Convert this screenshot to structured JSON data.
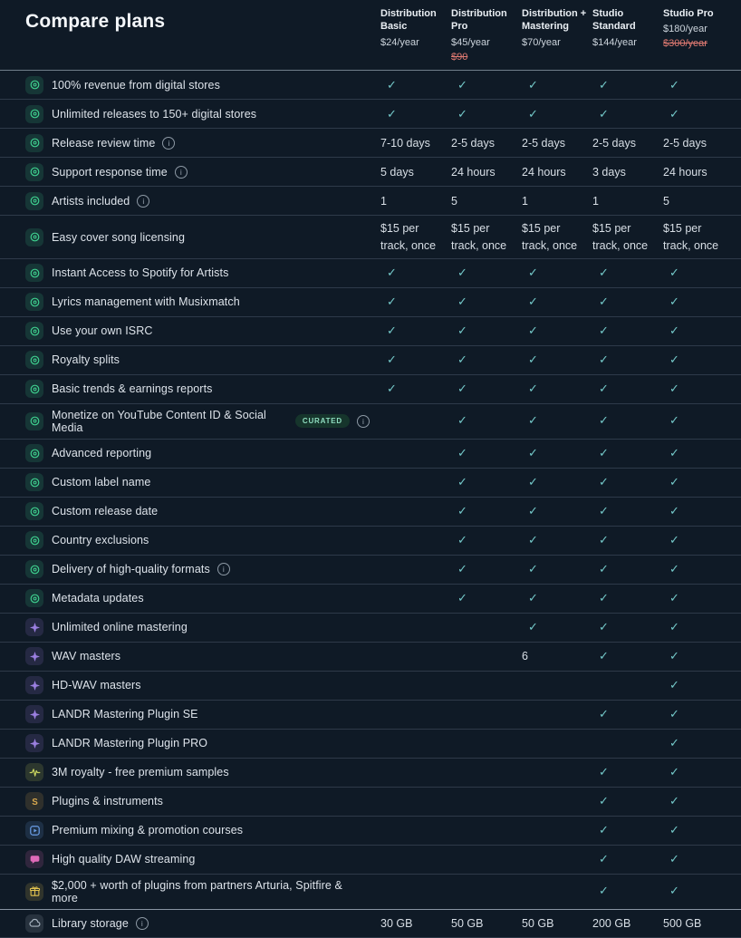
{
  "page": {
    "title": "Compare plans",
    "background": "#0f1a26",
    "check_symbol": "✓",
    "check_color": "#74c9c9",
    "strikethrough_color": "#e07a72"
  },
  "plans": [
    {
      "name": "Distribution Basic",
      "price": "$24/year",
      "old_price": ""
    },
    {
      "name": "Distribution Pro",
      "price": "$45/year",
      "old_price": "$90"
    },
    {
      "name": "Distribution + Mastering",
      "price": "$70/year",
      "old_price": ""
    },
    {
      "name": "Studio Standard",
      "price": "$144/year",
      "old_price": ""
    },
    {
      "name": "Studio Pro",
      "price": "$180/year",
      "old_price": "$300/year"
    }
  ],
  "icons": {
    "distribution": {
      "color": "#3ecf8e"
    },
    "mastering": {
      "color": "#9b7fe0"
    },
    "samples": {
      "color": "#c9d45f"
    },
    "plugins": {
      "color": "#d9a94f"
    },
    "courses": {
      "color": "#6b9fe8"
    },
    "streaming": {
      "color": "#e06ab8"
    },
    "gift": {
      "color": "#e3c34f"
    },
    "storage": {
      "color": "#a8b4c0"
    }
  },
  "features": [
    {
      "label": "100% revenue from digital stores",
      "icon": "distribution",
      "info": false,
      "badge": "",
      "values": [
        "check",
        "check",
        "check",
        "check",
        "check"
      ]
    },
    {
      "label": "Unlimited releases to 150+ digital stores",
      "icon": "distribution",
      "info": false,
      "badge": "",
      "values": [
        "check",
        "check",
        "check",
        "check",
        "check"
      ]
    },
    {
      "label": "Release review time",
      "icon": "distribution",
      "info": true,
      "badge": "",
      "values": [
        "7-10 days",
        "2-5 days",
        "2-5 days",
        "2-5 days",
        "2-5 days"
      ]
    },
    {
      "label": "Support response time",
      "icon": "distribution",
      "info": true,
      "badge": "",
      "values": [
        "5 days",
        "24 hours",
        "24 hours",
        "3 days",
        "24 hours"
      ]
    },
    {
      "label": "Artists included",
      "icon": "distribution",
      "info": true,
      "badge": "",
      "values": [
        "1",
        "5",
        "1",
        "1",
        "5"
      ]
    },
    {
      "label": "Easy cover song licensing",
      "icon": "distribution",
      "info": false,
      "badge": "",
      "values": [
        "$15 per track, once",
        "$15 per track, once",
        "$15 per track, once",
        "$15 per track, once",
        "$15 per track, once"
      ]
    },
    {
      "label": "Instant Access to Spotify for Artists",
      "icon": "distribution",
      "info": false,
      "badge": "",
      "values": [
        "check",
        "check",
        "check",
        "check",
        "check"
      ]
    },
    {
      "label": "Lyrics management with Musixmatch",
      "icon": "distribution",
      "info": false,
      "badge": "",
      "values": [
        "check",
        "check",
        "check",
        "check",
        "check"
      ]
    },
    {
      "label": "Use your own ISRC",
      "icon": "distribution",
      "info": false,
      "badge": "",
      "values": [
        "check",
        "check",
        "check",
        "check",
        "check"
      ]
    },
    {
      "label": "Royalty splits",
      "icon": "distribution",
      "info": false,
      "badge": "",
      "values": [
        "check",
        "check",
        "check",
        "check",
        "check"
      ]
    },
    {
      "label": "Basic trends & earnings reports",
      "icon": "distribution",
      "info": false,
      "badge": "",
      "values": [
        "check",
        "check",
        "check",
        "check",
        "check"
      ]
    },
    {
      "label": "Monetize on YouTube Content ID & Social Media",
      "icon": "distribution",
      "info": true,
      "badge": "CURATED",
      "values": [
        "",
        "check",
        "check",
        "check",
        "check"
      ]
    },
    {
      "label": "Advanced reporting",
      "icon": "distribution",
      "info": false,
      "badge": "",
      "values": [
        "",
        "check",
        "check",
        "check",
        "check"
      ]
    },
    {
      "label": "Custom label name",
      "icon": "distribution",
      "info": false,
      "badge": "",
      "values": [
        "",
        "check",
        "check",
        "check",
        "check"
      ]
    },
    {
      "label": "Custom release date",
      "icon": "distribution",
      "info": false,
      "badge": "",
      "values": [
        "",
        "check",
        "check",
        "check",
        "check"
      ]
    },
    {
      "label": "Country exclusions",
      "icon": "distribution",
      "info": false,
      "badge": "",
      "values": [
        "",
        "check",
        "check",
        "check",
        "check"
      ]
    },
    {
      "label": "Delivery of high-quality formats",
      "icon": "distribution",
      "info": true,
      "badge": "",
      "values": [
        "",
        "check",
        "check",
        "check",
        "check"
      ]
    },
    {
      "label": "Metadata updates",
      "icon": "distribution",
      "info": false,
      "badge": "",
      "values": [
        "",
        "check",
        "check",
        "check",
        "check"
      ]
    },
    {
      "label": "Unlimited online mastering",
      "icon": "mastering",
      "info": false,
      "badge": "",
      "values": [
        "",
        "",
        "check",
        "check",
        "check"
      ]
    },
    {
      "label": "WAV masters",
      "icon": "mastering",
      "info": false,
      "badge": "",
      "values": [
        "",
        "",
        "6",
        "check",
        "check"
      ]
    },
    {
      "label": "HD-WAV masters",
      "icon": "mastering",
      "info": false,
      "badge": "",
      "values": [
        "",
        "",
        "",
        "",
        "check"
      ]
    },
    {
      "label": "LANDR Mastering Plugin SE",
      "icon": "mastering",
      "info": false,
      "badge": "",
      "values": [
        "",
        "",
        "",
        "check",
        "check"
      ]
    },
    {
      "label": "LANDR Mastering Plugin PRO",
      "icon": "mastering",
      "info": false,
      "badge": "",
      "values": [
        "",
        "",
        "",
        "",
        "check"
      ]
    },
    {
      "label": "3M royalty - free premium samples",
      "icon": "samples",
      "info": false,
      "badge": "",
      "values": [
        "",
        "",
        "",
        "check",
        "check"
      ]
    },
    {
      "label": "Plugins & instruments",
      "icon": "plugins",
      "info": false,
      "badge": "",
      "values": [
        "",
        "",
        "",
        "check",
        "check"
      ]
    },
    {
      "label": "Premium mixing & promotion courses",
      "icon": "courses",
      "info": false,
      "badge": "",
      "values": [
        "",
        "",
        "",
        "check",
        "check"
      ]
    },
    {
      "label": "High quality DAW streaming",
      "icon": "streaming",
      "info": false,
      "badge": "",
      "values": [
        "",
        "",
        "",
        "check",
        "check"
      ]
    },
    {
      "label": "$2,000 + worth of plugins from partners Arturia, Spitfire & more",
      "icon": "gift",
      "info": false,
      "badge": "",
      "values": [
        "",
        "",
        "",
        "check",
        "check"
      ]
    },
    {
      "label": "Library storage",
      "icon": "storage",
      "info": true,
      "badge": "",
      "strong_top": true,
      "values": [
        "30 GB",
        "50 GB",
        "50 GB",
        "200 GB",
        "500 GB"
      ]
    }
  ]
}
